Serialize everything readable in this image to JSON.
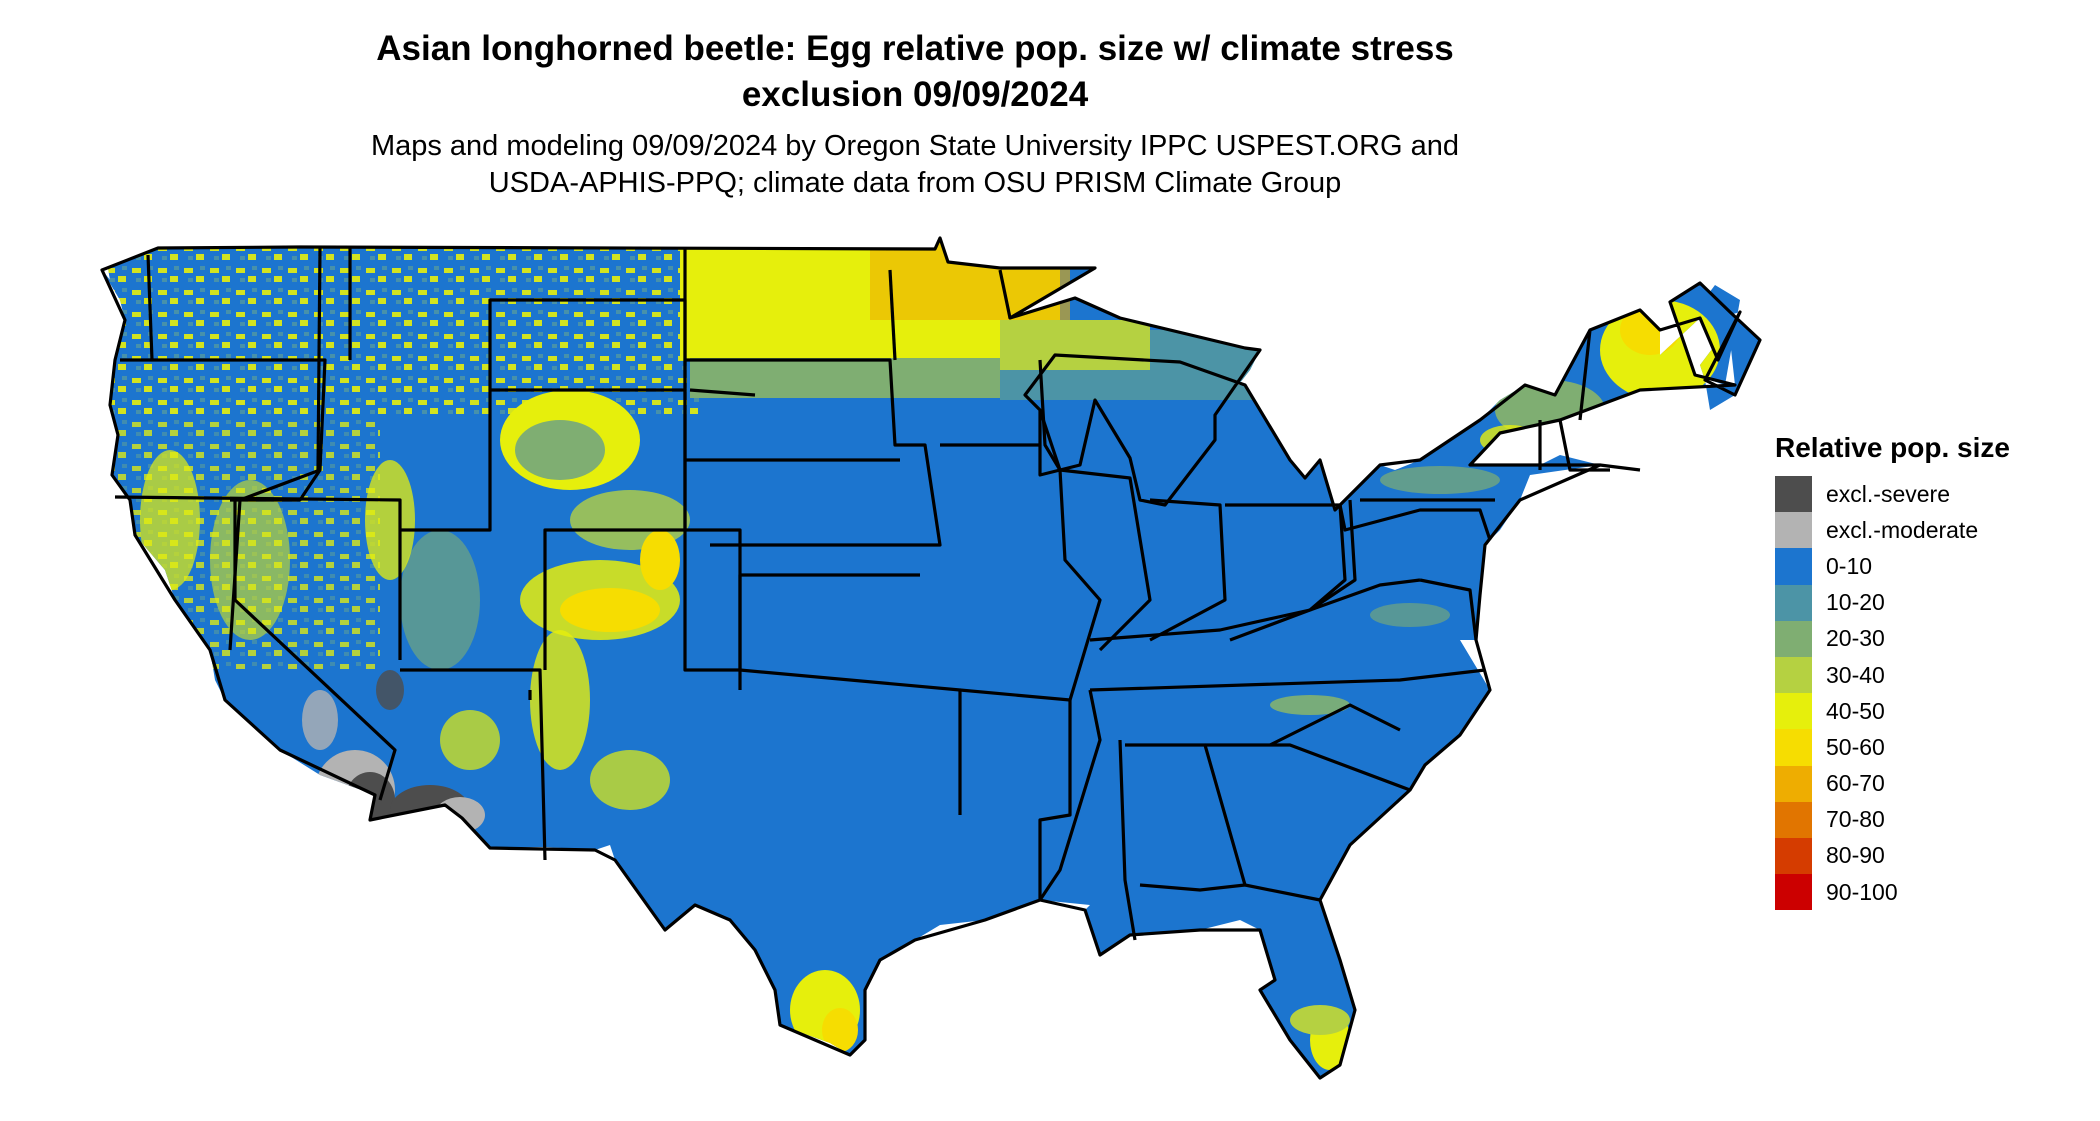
{
  "title": {
    "line1": "Asian longhorned beetle: Egg relative pop. size w/ climate stress",
    "line2": "exclusion 09/09/2024"
  },
  "subtitle": {
    "line1": "Maps and modeling 09/09/2024 by Oregon State University IPPC USPEST.ORG and",
    "line2": "USDA-APHIS-PPQ; climate data from OSU PRISM Climate Group"
  },
  "legend": {
    "title": "Relative pop. size",
    "items": [
      {
        "label": "excl.-severe",
        "color": "#4d4d4d"
      },
      {
        "label": "excl.-moderate",
        "color": "#b3b3b3"
      },
      {
        "label": "0-10",
        "color": "#1c75cf"
      },
      {
        "label": "10-20",
        "color": "#4c94a6"
      },
      {
        "label": "20-30",
        "color": "#7fae72"
      },
      {
        "label": "30-40",
        "color": "#b5d141"
      },
      {
        "label": "40-50",
        "color": "#e6ef0c"
      },
      {
        "label": "50-60",
        "color": "#f6dd01"
      },
      {
        "label": "60-70",
        "color": "#eead01"
      },
      {
        "label": "70-80",
        "color": "#e17500"
      },
      {
        "label": "80-90",
        "color": "#d53c00"
      },
      {
        "label": "90-100",
        "color": "#cc0000"
      }
    ]
  },
  "map": {
    "base_color": "#1c75cf",
    "border_color": "#000000"
  }
}
